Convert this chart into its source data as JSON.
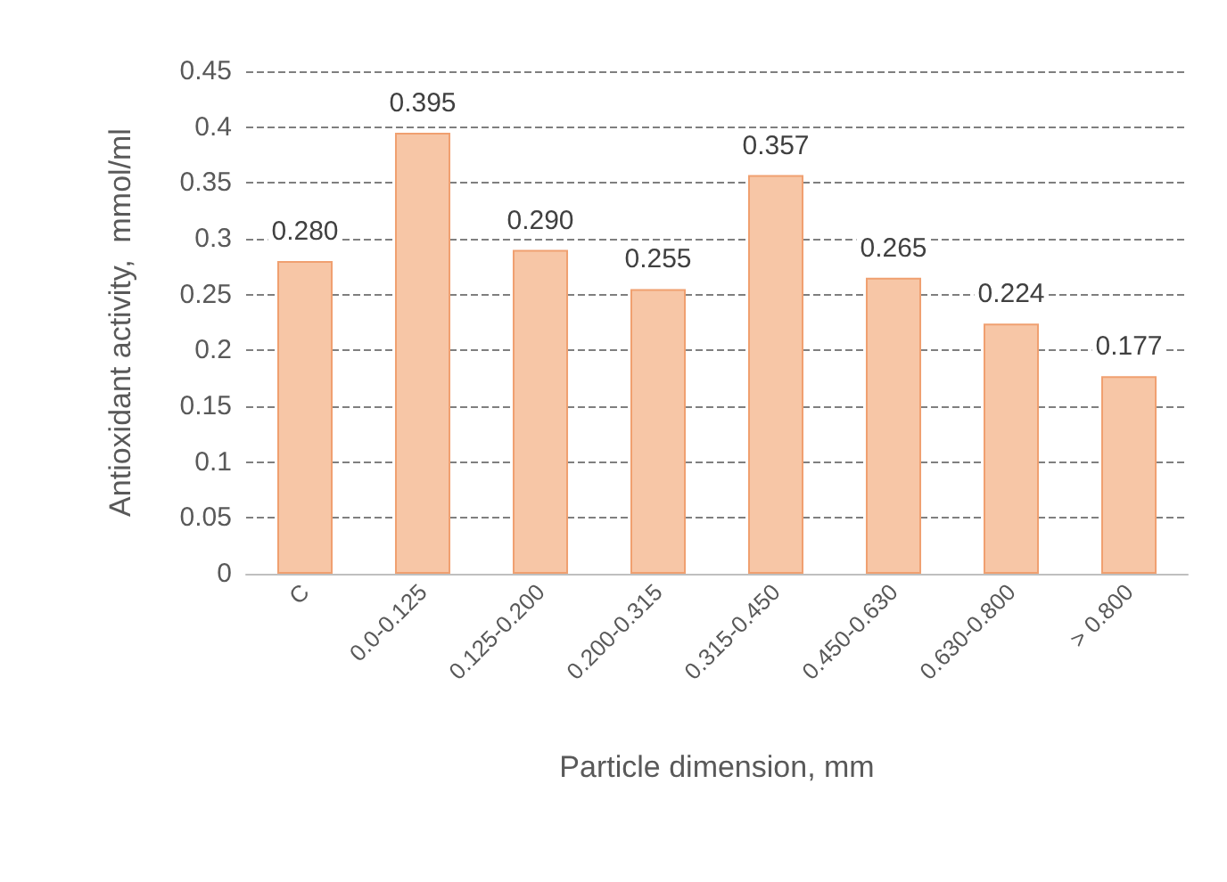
{
  "chart_data": {
    "type": "bar",
    "xlabel": "Particle dimension, mm",
    "ylabel": "Antioxidant activity,  mmol/ml",
    "categories": [
      "C",
      "0.0-0.125",
      "0.125-0.200",
      "0.200-0.315",
      "0.315-0.450",
      "0.450-0.630",
      "0.630-0.800",
      "> 0.800"
    ],
    "values": [
      0.28,
      0.395,
      0.29,
      0.255,
      0.357,
      0.265,
      0.224,
      0.177
    ],
    "value_labels": [
      "0.280",
      "0.395",
      "0.290",
      "0.255",
      "0.357",
      "0.265",
      "0.224",
      "0.177"
    ],
    "color": "#f7c6a6",
    "ylim": [
      0,
      0.45
    ],
    "yticks": [
      0,
      0.05,
      0.1,
      0.15,
      0.2,
      0.25,
      0.3,
      0.35,
      0.4,
      0.45
    ],
    "grid": "y"
  }
}
